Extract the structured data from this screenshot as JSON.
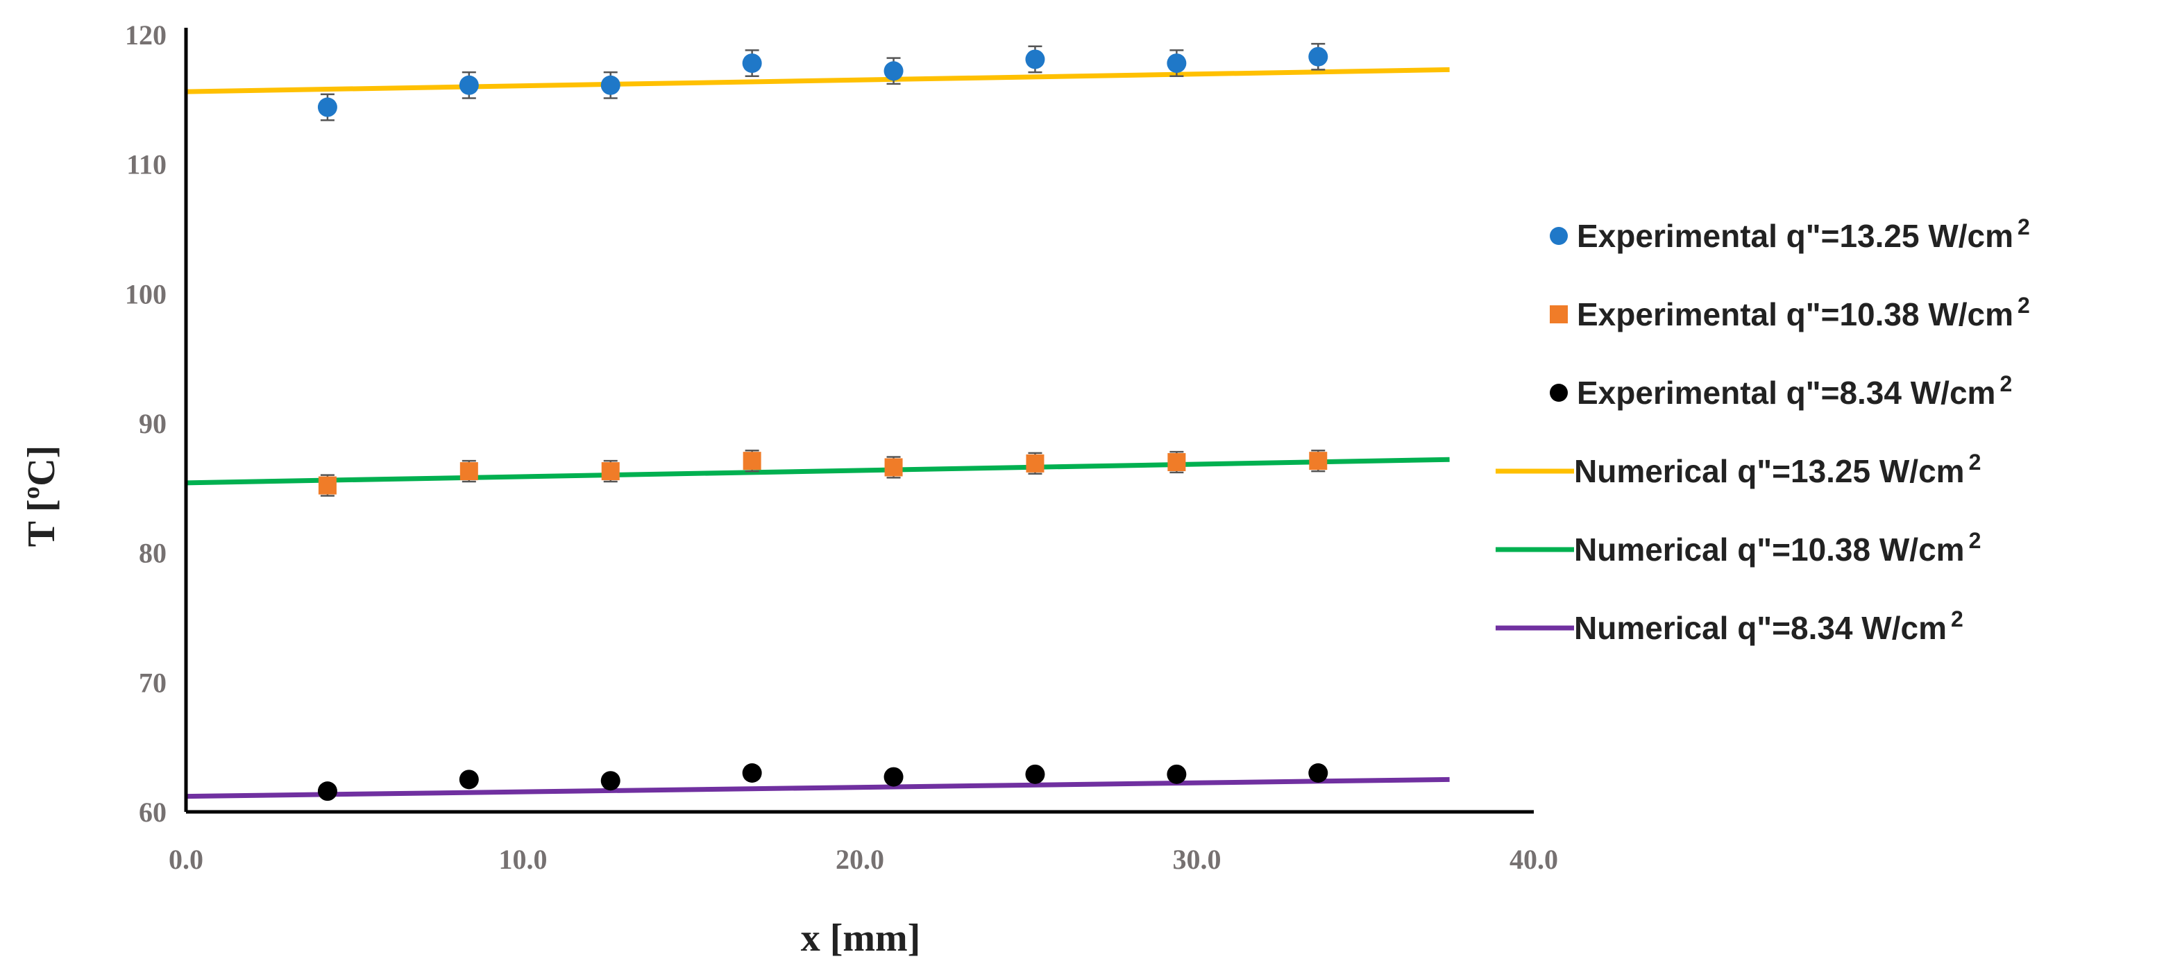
{
  "chart_data": {
    "type": "scatter",
    "title": "",
    "xlabel": "x [mm]",
    "ylabel": "T [ºC]",
    "xlim": [
      0,
      40
    ],
    "ylim": [
      60,
      120
    ],
    "x_ticks": [
      0,
      10,
      20,
      30,
      40
    ],
    "x_tick_labels": [
      "0.0",
      "10.0",
      "20.0",
      "30.0",
      "40.0"
    ],
    "y_ticks": [
      60,
      70,
      80,
      90,
      100,
      110,
      120
    ],
    "y_tick_labels": [
      "60",
      "70",
      "80",
      "90",
      "100",
      "110",
      "120"
    ],
    "grid": false,
    "legend_position": "right",
    "series": [
      {
        "name": "Experimental q\"=13.25 W/cm",
        "sup": "2",
        "kind": "scatter",
        "color": "#1f78c8",
        "x": [
          4.2,
          8.4,
          12.6,
          16.8,
          21.0,
          25.2,
          29.4,
          33.6
        ],
        "y": [
          114.4,
          116.1,
          116.1,
          117.8,
          117.2,
          118.1,
          117.8,
          118.3
        ],
        "error": 1.0
      },
      {
        "name": "Experimental q\"=10.38 W/cm",
        "sup": "2",
        "kind": "scatter",
        "color": "#f07c28",
        "x": [
          4.2,
          8.4,
          12.6,
          16.8,
          21.0,
          25.2,
          29.4,
          33.6
        ],
        "y": [
          85.2,
          86.3,
          86.3,
          87.1,
          86.6,
          86.9,
          87.0,
          87.1
        ],
        "error": 0.8
      },
      {
        "name": "Experimental q\"=8.34 W/cm",
        "sup": "2",
        "kind": "scatter",
        "color": "#000000",
        "x": [
          4.2,
          8.4,
          12.6,
          16.8,
          21.0,
          25.2,
          29.4,
          33.6
        ],
        "y": [
          61.6,
          62.5,
          62.4,
          63.0,
          62.7,
          62.9,
          62.9,
          63.0
        ],
        "error": 0
      },
      {
        "name": "Numerical q\"=13.25 W/cm",
        "sup": "2",
        "kind": "line",
        "color": "#ffc000",
        "x": [
          0,
          37.5
        ],
        "y": [
          115.6,
          117.3
        ]
      },
      {
        "name": "Numerical q\"=10.38 W/cm",
        "sup": "2",
        "kind": "line",
        "color": "#00b050",
        "x": [
          0,
          37.5
        ],
        "y": [
          85.4,
          87.2
        ]
      },
      {
        "name": "Numerical q\"=8.34 W/cm",
        "sup": "2",
        "kind": "line",
        "color": "#7030a0",
        "x": [
          0,
          37.5
        ],
        "y": [
          61.2,
          62.5
        ]
      }
    ]
  }
}
